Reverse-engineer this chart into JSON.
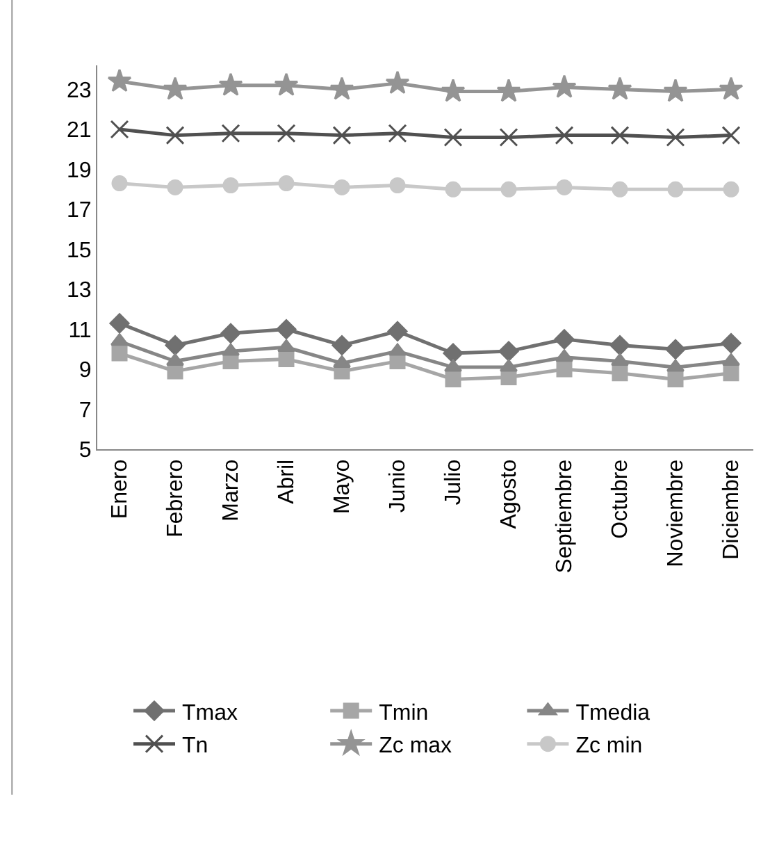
{
  "chart_data": {
    "type": "line",
    "categories": [
      "Enero",
      "Febrero",
      "Marzo",
      "Abril",
      "Mayo",
      "Junio",
      "Julio",
      "Agosto",
      "Septiembre",
      "Octubre",
      "Noviembre",
      "Diciembre"
    ],
    "series": [
      {
        "name": "Tmax",
        "color": "#707070",
        "marker": "diamond",
        "values": [
          11.3,
          10.2,
          10.8,
          11.0,
          10.2,
          10.9,
          9.8,
          9.9,
          10.5,
          10.2,
          10.0,
          10.3
        ]
      },
      {
        "name": "Tmin",
        "color": "#a6a6a6",
        "marker": "square",
        "values": [
          9.8,
          8.9,
          9.4,
          9.5,
          8.9,
          9.4,
          8.5,
          8.6,
          9.0,
          8.8,
          8.5,
          8.8
        ]
      },
      {
        "name": "Tmedia",
        "color": "#868686",
        "marker": "triangle",
        "values": [
          10.4,
          9.4,
          9.9,
          10.1,
          9.3,
          9.9,
          9.1,
          9.1,
          9.6,
          9.4,
          9.1,
          9.4
        ]
      },
      {
        "name": "Tn",
        "color": "#505050",
        "marker": "cross",
        "values": [
          21.0,
          20.7,
          20.8,
          20.8,
          20.7,
          20.8,
          20.6,
          20.6,
          20.7,
          20.7,
          20.6,
          20.7
        ]
      },
      {
        "name": "Zc max",
        "color": "#949494",
        "marker": "star",
        "values": [
          23.4,
          23.0,
          23.2,
          23.2,
          23.0,
          23.3,
          22.9,
          22.9,
          23.1,
          23.0,
          22.9,
          23.0
        ]
      },
      {
        "name": "Zc min",
        "color": "#c8c8c8",
        "marker": "circle",
        "values": [
          18.3,
          18.1,
          18.2,
          18.3,
          18.1,
          18.2,
          18.0,
          18.0,
          18.1,
          18.0,
          18.0,
          18.0
        ]
      }
    ],
    "ylim": [
      5,
      24.2
    ],
    "yticks": [
      5,
      7,
      9,
      11,
      13,
      15,
      17,
      19,
      21,
      23
    ],
    "grid": false,
    "legend": "bottom"
  }
}
